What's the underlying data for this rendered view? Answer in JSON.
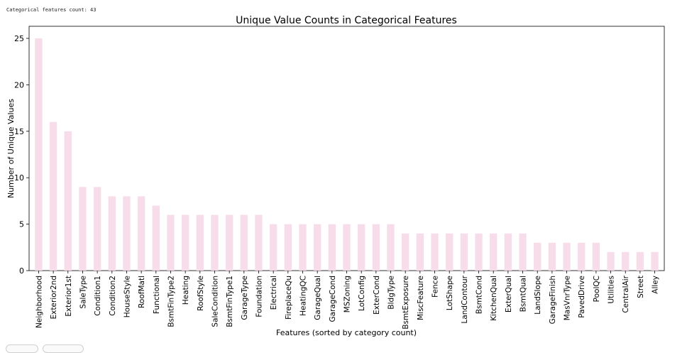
{
  "console": {
    "text": "Categorical features count: 43"
  },
  "chart_data": {
    "type": "bar",
    "title": "Unique Value Counts in Categorical Features",
    "xlabel": "Features (sorted by category count)",
    "ylabel": "Number of Unique Values",
    "ylim": [
      0,
      26.3
    ],
    "yticks": [
      0,
      5,
      10,
      15,
      20,
      25
    ],
    "bar_color": "#f7dde9",
    "categories": [
      "Neighborhood",
      "Exterior2nd",
      "Exterior1st",
      "SaleType",
      "Condition1",
      "Condition2",
      "HouseStyle",
      "RoofMatl",
      "Functional",
      "BsmtFinType2",
      "Heating",
      "RoofStyle",
      "SaleCondition",
      "BsmtFinType1",
      "GarageType",
      "Foundation",
      "Electrical",
      "FireplaceQu",
      "HeatingQC",
      "GarageQual",
      "GarageCond",
      "MSZoning",
      "LotConfig",
      "ExterCond",
      "BldgType",
      "BsmtExposure",
      "MiscFeature",
      "Fence",
      "LotShape",
      "LandContour",
      "BsmtCond",
      "KitchenQual",
      "ExterQual",
      "BsmtQual",
      "LandSlope",
      "GarageFinish",
      "MasVnrType",
      "PavedDrive",
      "PoolQC",
      "Utilities",
      "CentralAir",
      "Street",
      "Alley"
    ],
    "values": [
      25,
      16,
      15,
      9,
      9,
      8,
      8,
      8,
      7,
      6,
      6,
      6,
      6,
      6,
      6,
      6,
      5,
      5,
      5,
      5,
      5,
      5,
      5,
      5,
      5,
      4,
      4,
      4,
      4,
      4,
      4,
      4,
      4,
      4,
      3,
      3,
      3,
      3,
      3,
      2,
      2,
      2,
      2
    ],
    "grid": false,
    "legend": "none"
  }
}
